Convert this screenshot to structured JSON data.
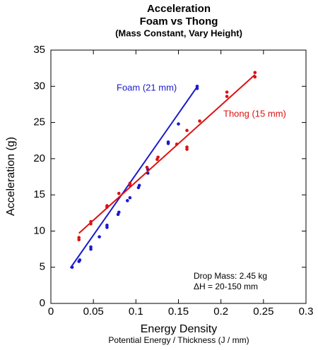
{
  "chart_data": {
    "type": "scatter",
    "title": "Acceleration",
    "subtitle": "Foam vs Thong",
    "subtitle2": "(Mass Constant, Vary Height)",
    "x_label": "Energy Density",
    "x_sublabel": "Potential Energy / Thickness (J / mm)",
    "y_label": "Acceleration (g)",
    "xlim": [
      0,
      0.3
    ],
    "xticks": [
      0,
      0.05,
      0.1,
      0.15,
      0.2,
      0.25,
      0.3
    ],
    "ylim": [
      0,
      35
    ],
    "yticks": [
      0,
      5,
      10,
      15,
      20,
      25,
      30,
      35
    ],
    "annotations": [
      "Drop Mass: 2.45 kg",
      "ΔH = 20-150 mm"
    ],
    "series": [
      {
        "name": "Foam (21 mm)",
        "color": "#1a1acc",
        "x": [
          0.025,
          0.033,
          0.034,
          0.047,
          0.047,
          0.057,
          0.066,
          0.066,
          0.079,
          0.08,
          0.09,
          0.093,
          0.103,
          0.104,
          0.114,
          0.114,
          0.138,
          0.138,
          0.15,
          0.172,
          0.172
        ],
        "values": [
          5.0,
          5.8,
          6.0,
          7.5,
          7.8,
          9.2,
          10.5,
          10.8,
          12.3,
          12.6,
          14.2,
          14.6,
          16.0,
          16.3,
          18.0,
          18.5,
          22.1,
          22.3,
          24.8,
          29.7,
          30.0
        ],
        "fit": {
          "x": [
            0.023,
            0.173
          ],
          "values": [
            4.9,
            30.1
          ]
        }
      },
      {
        "name": "Thong (15 mm)",
        "color": "#dd1111",
        "x": [
          0.033,
          0.033,
          0.047,
          0.047,
          0.066,
          0.066,
          0.08,
          0.093,
          0.093,
          0.113,
          0.125,
          0.126,
          0.148,
          0.16,
          0.16,
          0.16,
          0.175,
          0.207,
          0.207,
          0.24,
          0.24
        ],
        "values": [
          8.8,
          9.1,
          11.0,
          11.3,
          13.3,
          13.5,
          15.2,
          16.3,
          16.6,
          18.8,
          19.9,
          20.2,
          22.0,
          23.9,
          21.3,
          21.6,
          25.2,
          28.6,
          29.2,
          31.3,
          31.9
        ],
        "fit": {
          "x": [
            0.033,
            0.24
          ],
          "values": [
            9.7,
            31.6
          ]
        }
      }
    ]
  }
}
